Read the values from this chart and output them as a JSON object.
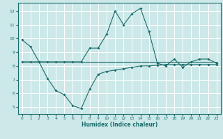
{
  "xlabel": "Humidex (Indice chaleur)",
  "bg_color": "#cce8e8",
  "grid_color": "#ffffff",
  "line_color": "#1a6b6b",
  "x_ticks": [
    0,
    1,
    2,
    3,
    4,
    5,
    6,
    7,
    8,
    9,
    10,
    11,
    12,
    13,
    14,
    15,
    16,
    17,
    18,
    19,
    20,
    21,
    22,
    23
  ],
  "y_ticks": [
    5,
    6,
    7,
    8,
    9,
    10,
    11,
    12
  ],
  "xlim": [
    -0.5,
    23.5
  ],
  "ylim": [
    4.5,
    12.6
  ],
  "line1_x": [
    0,
    1,
    2,
    3,
    4,
    5,
    6,
    7,
    8,
    9,
    10,
    11,
    12,
    13,
    14,
    15,
    16,
    17,
    18,
    19,
    20,
    21,
    22,
    23
  ],
  "line1_y": [
    9.9,
    9.4,
    8.3,
    8.3,
    8.3,
    8.3,
    8.3,
    8.3,
    9.3,
    9.3,
    10.3,
    12.0,
    11.0,
    11.8,
    12.2,
    10.5,
    8.2,
    8.0,
    8.5,
    7.9,
    8.3,
    8.5,
    8.5,
    8.2
  ],
  "line2_x": [
    0,
    1,
    2,
    3,
    4,
    5,
    6,
    7,
    8,
    9,
    10,
    11,
    12,
    13,
    14,
    15,
    16,
    17,
    18,
    19,
    20,
    21,
    22,
    23
  ],
  "line2_y": [
    8.3,
    8.3,
    8.3,
    8.3,
    8.3,
    8.3,
    8.3,
    8.3,
    8.3,
    8.3,
    8.3,
    8.3,
    8.3,
    8.3,
    8.3,
    8.3,
    8.3,
    8.3,
    8.3,
    8.3,
    8.3,
    8.3,
    8.3,
    8.3
  ],
  "line3_x": [
    0,
    1,
    2,
    3,
    4,
    5,
    6,
    7,
    8,
    9,
    10,
    11,
    12,
    13,
    14,
    15,
    16,
    17,
    18,
    19,
    20,
    21,
    22,
    23
  ],
  "line3_y": [
    8.3,
    8.3,
    8.3,
    7.1,
    6.2,
    5.9,
    5.1,
    4.9,
    6.3,
    7.4,
    7.6,
    7.7,
    7.8,
    7.9,
    8.0,
    8.0,
    8.05,
    8.1,
    8.1,
    8.1,
    8.1,
    8.1,
    8.1,
    8.1
  ]
}
